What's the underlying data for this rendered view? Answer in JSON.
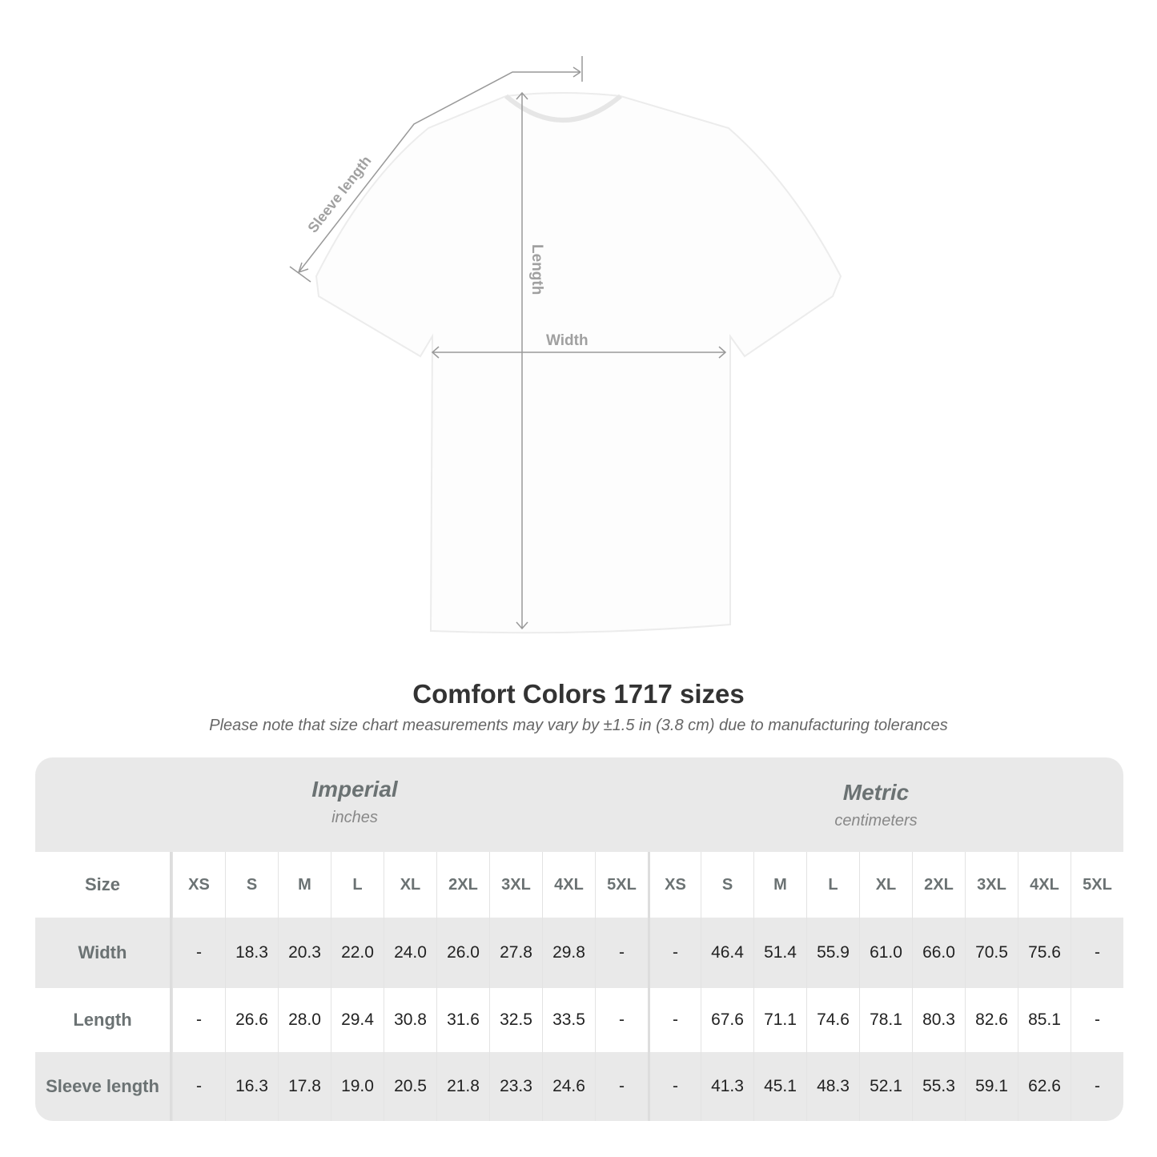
{
  "diagram": {
    "labels": {
      "sleeve": "Sleeve length",
      "length": "Length",
      "width": "Width"
    },
    "line_color": "#999999"
  },
  "title": "Comfort Colors 1717 sizes",
  "subtitle": "Please note that size chart measurements may vary by ±1.5 in (3.8 cm) due to manufacturing tolerances",
  "table": {
    "imperial": {
      "name": "Imperial",
      "unit": "inches"
    },
    "metric": {
      "name": "Metric",
      "unit": "centimeters"
    },
    "size_label": "Size",
    "sizes": [
      "XS",
      "S",
      "M",
      "L",
      "XL",
      "2XL",
      "3XL",
      "4XL",
      "5XL"
    ],
    "rows": [
      {
        "label": "Width",
        "imperial": [
          "-",
          "18.3",
          "20.3",
          "22.0",
          "24.0",
          "26.0",
          "27.8",
          "29.8",
          "-"
        ],
        "metric": [
          "-",
          "46.4",
          "51.4",
          "55.9",
          "61.0",
          "66.0",
          "70.5",
          "75.6",
          "-"
        ]
      },
      {
        "label": "Length",
        "imperial": [
          "-",
          "26.6",
          "28.0",
          "29.4",
          "30.8",
          "31.6",
          "32.5",
          "33.5",
          "-"
        ],
        "metric": [
          "-",
          "67.6",
          "71.1",
          "74.6",
          "78.1",
          "80.3",
          "82.6",
          "85.1",
          "-"
        ]
      },
      {
        "label": "Sleeve length",
        "imperial": [
          "-",
          "16.3",
          "17.8",
          "19.0",
          "20.5",
          "21.8",
          "23.3",
          "24.6",
          "-"
        ],
        "metric": [
          "-",
          "41.3",
          "45.1",
          "48.3",
          "52.1",
          "55.3",
          "59.1",
          "62.6",
          "-"
        ]
      }
    ],
    "header_bg": "#e9e9e9",
    "header_text_color": "#6b7273"
  }
}
